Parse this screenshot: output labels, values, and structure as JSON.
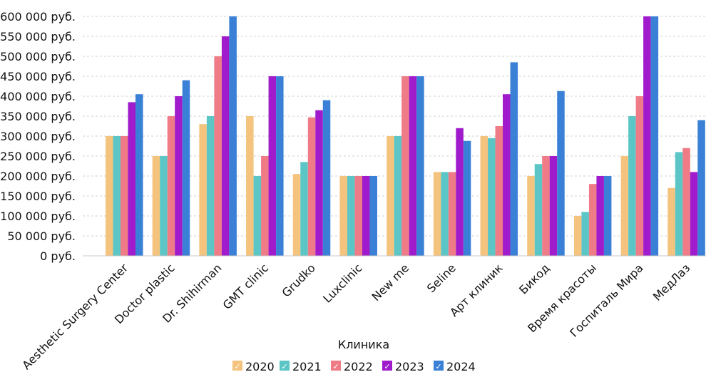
{
  "chart_data": {
    "type": "bar",
    "xlabel": "Клиника",
    "ylabel": "",
    "title": "",
    "ylim": [
      0,
      600000
    ],
    "y_step": 50000,
    "y_tick_suffix": " руб.",
    "grid": "horizontal-dashed",
    "legend_position": "bottom",
    "categories": [
      "Aesthetic Surgery Center",
      "Doctor plastic",
      "Dr. Shihirman",
      "GMT clinic",
      "Grudko",
      "Luxclinic",
      "New me",
      "Seline",
      "Арт клиник",
      "Бикод",
      "Время красоты",
      "Госпиталь Мира",
      "МедЛаз"
    ],
    "series": [
      {
        "name": "2020",
        "color": "#F4C37D",
        "values": [
          300000,
          250000,
          330000,
          350000,
          205000,
          200000,
          300000,
          210000,
          300000,
          200000,
          100000,
          250000,
          170000
        ]
      },
      {
        "name": "2021",
        "color": "#5CC6C6",
        "values": [
          300000,
          250000,
          350000,
          200000,
          235000,
          200000,
          300000,
          210000,
          295000,
          230000,
          110000,
          350000,
          260000
        ]
      },
      {
        "name": "2022",
        "color": "#EE7B86",
        "values": [
          300000,
          350000,
          500000,
          250000,
          347000,
          200000,
          450000,
          210000,
          325000,
          250000,
          180000,
          400000,
          270000
        ]
      },
      {
        "name": "2023",
        "color": "#9F1BCB",
        "values": [
          385000,
          400000,
          550000,
          450000,
          365000,
          200000,
          450000,
          320000,
          405000,
          250000,
          200000,
          600000,
          210000
        ]
      },
      {
        "name": "2024",
        "color": "#3A80D6",
        "values": [
          405000,
          440000,
          600000,
          450000,
          390000,
          200000,
          450000,
          288000,
          485000,
          413000,
          200000,
          600000,
          340000
        ]
      }
    ],
    "legend_check": "✓"
  }
}
